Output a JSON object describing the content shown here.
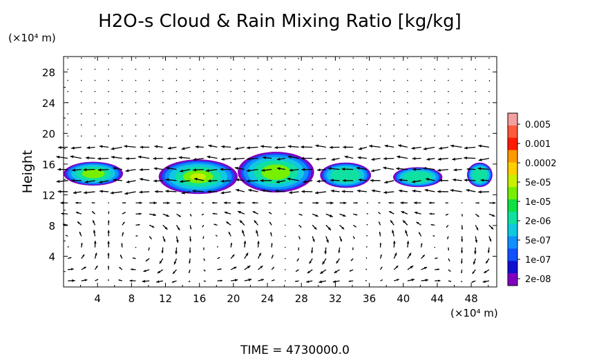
{
  "chart_data": {
    "type": "heatmap",
    "title": "H2O-s Cloud & Rain Mixing Ratio [kg/kg]",
    "ylabel": "Height",
    "y_unit": "(×10⁴ m)",
    "x_unit": "(×10⁴ m)",
    "footer": "TIME = 4730000.0",
    "xlim": [
      0,
      51
    ],
    "ylim": [
      0,
      30
    ],
    "x_ticks": [
      "4",
      "8",
      "12",
      "16",
      "20",
      "24",
      "28",
      "32",
      "36",
      "40",
      "44",
      "48"
    ],
    "x_tick_values": [
      4,
      8,
      12,
      16,
      20,
      24,
      28,
      32,
      36,
      40,
      44,
      48
    ],
    "y_ticks": [
      "4",
      "8",
      "12",
      "16",
      "20",
      "24",
      "28"
    ],
    "y_tick_values": [
      4,
      8,
      12,
      16,
      20,
      24,
      28
    ],
    "colorbar": {
      "labels": [
        "0.005",
        "0.001",
        "0.0002",
        "5e-05",
        "1e-05",
        "2e-06",
        "5e-07",
        "1e-07",
        "2e-08"
      ],
      "colors": [
        "#f4a0a0",
        "#ff5a3c",
        "#ff1a00",
        "#ff9a00",
        "#ffd000",
        "#c8f000",
        "#76f000",
        "#10e040",
        "#10e0a0",
        "#10c8e0",
        "#1090ff",
        "#1050ff",
        "#1010d0",
        "#8000c0"
      ]
    },
    "cloud_regions": [
      {
        "x": [
          0,
          7.0
        ],
        "y": [
          13.2,
          16.3
        ],
        "level": "1e-05"
      },
      {
        "x": [
          11.2,
          20.5
        ],
        "y": [
          12.1,
          16.6
        ],
        "level": "5e-05"
      },
      {
        "x": [
          20.5,
          29.5
        ],
        "y": [
          12.3,
          17.6
        ],
        "level": "1e-05"
      },
      {
        "x": [
          30.2,
          36.2
        ],
        "y": [
          12.9,
          16.2
        ],
        "level": "2e-06"
      },
      {
        "x": [
          38.8,
          44.6
        ],
        "y": [
          13.0,
          15.6
        ],
        "level": "2e-06"
      },
      {
        "x": [
          47.5,
          50.5
        ],
        "y": [
          13.0,
          16.2
        ],
        "level": "2e-06"
      }
    ],
    "wind_vectors": "circulating flow with strong easterly jet near y=12-18, weak upper-level flow above y=20"
  }
}
